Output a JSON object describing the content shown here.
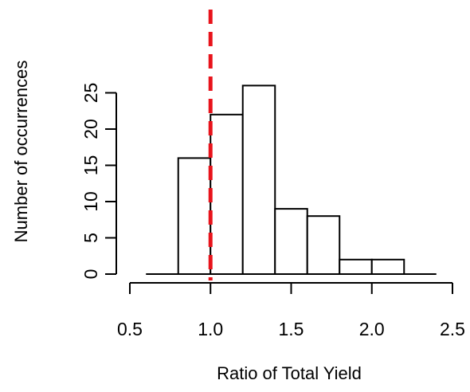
{
  "chart_data": {
    "type": "bar",
    "title": "",
    "xlabel": "Ratio of Total Yield",
    "ylabel": "Number of occurrences",
    "bins": [
      {
        "x0": 0.8,
        "x1": 1.0,
        "count": 16
      },
      {
        "x0": 1.0,
        "x1": 1.2,
        "count": 22
      },
      {
        "x0": 1.2,
        "x1": 1.4,
        "count": 26
      },
      {
        "x0": 1.4,
        "x1": 1.6,
        "count": 9
      },
      {
        "x0": 1.6,
        "x1": 1.8,
        "count": 8
      },
      {
        "x0": 1.8,
        "x1": 2.0,
        "count": 2
      },
      {
        "x0": 2.0,
        "x1": 2.2,
        "count": 2
      }
    ],
    "baseline_range": [
      0.6,
      2.4
    ],
    "reference_line": {
      "x": 1.0,
      "style": "dashed",
      "color": "#e8131b"
    },
    "xlim": [
      0.5,
      2.5
    ],
    "ylim": [
      0,
      26
    ],
    "xticks": [
      0.5,
      1.0,
      1.5,
      2.0,
      2.5
    ],
    "xtick_labels": [
      "0.5",
      "1.0",
      "1.5",
      "2.0",
      "2.5"
    ],
    "yticks": [
      0,
      5,
      10,
      15,
      20,
      25
    ],
    "ytick_labels": [
      "0",
      "5",
      "10",
      "15",
      "20",
      "25"
    ],
    "grid": false,
    "colors": {
      "bar_fill": "#ffffff",
      "bar_stroke": "#000000",
      "axis": "#000000"
    }
  }
}
